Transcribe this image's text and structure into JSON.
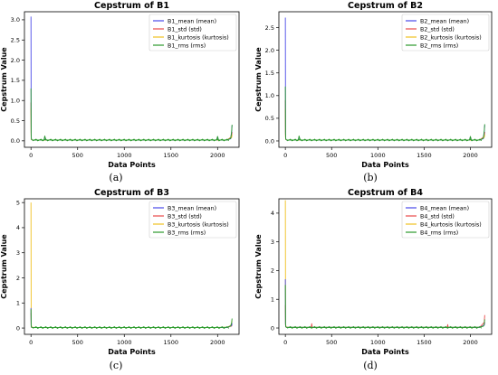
{
  "chart_data": [
    {
      "type": "line",
      "title": "Cepstrum of B1",
      "xlabel": "Data Points",
      "ylabel": "Cepstrum Value",
      "xlim": [
        -70,
        2230
      ],
      "ylim": [
        -0.16,
        3.2
      ],
      "xticks": [
        0,
        500,
        1000,
        1500,
        2000
      ],
      "yticks": [
        0.0,
        0.5,
        1.0,
        1.5,
        2.0,
        2.5,
        3.0
      ],
      "ytick_decimals": 1,
      "legend_position": "top-right",
      "caption": "(a)",
      "series": [
        {
          "name": "B1_mean (mean)",
          "color": "#4a4ae8",
          "x": [
            0,
            2,
            4,
            8,
            15,
            40,
            140,
            148,
            160,
            400,
            800,
            1200,
            1600,
            1990,
            2000,
            2010,
            2100,
            2140,
            2150,
            2155
          ],
          "y": [
            3.08,
            0.2,
            0.05,
            0.03,
            0.02,
            0.02,
            0.02,
            0.1,
            0.02,
            0.02,
            0.02,
            0.02,
            0.02,
            0.02,
            0.1,
            0.02,
            0.02,
            0.05,
            0.2,
            0.38
          ]
        },
        {
          "name": "B1_std (std)",
          "color": "#e84a4a",
          "x": [
            0,
            2,
            4,
            15,
            500,
            1000,
            1500,
            2100,
            2150,
            2155
          ],
          "y": [
            0.95,
            0.1,
            0.04,
            0.02,
            0.02,
            0.02,
            0.02,
            0.02,
            0.1,
            0.22
          ]
        },
        {
          "name": "B1_kurtosis (kurtosis)",
          "color": "#f0c020",
          "x": [
            0,
            2,
            4,
            15,
            500,
            1000,
            1500,
            2100,
            2150,
            2155
          ],
          "y": [
            0.8,
            0.08,
            0.03,
            0.02,
            0.02,
            0.02,
            0.02,
            0.02,
            0.08,
            0.15
          ]
        },
        {
          "name": "B1_rms (rms)",
          "color": "#2a9a2a",
          "x": [
            0,
            2,
            4,
            8,
            15,
            40,
            140,
            148,
            160,
            400,
            800,
            1200,
            1600,
            1990,
            2000,
            2010,
            2100,
            2140,
            2150,
            2155
          ],
          "y": [
            1.3,
            0.15,
            0.05,
            0.03,
            0.02,
            0.02,
            0.02,
            0.12,
            0.02,
            0.02,
            0.02,
            0.02,
            0.02,
            0.02,
            0.11,
            0.02,
            0.02,
            0.06,
            0.22,
            0.4
          ]
        }
      ]
    },
    {
      "type": "line",
      "title": "Cepstrum of B2",
      "xlabel": "Data Points",
      "ylabel": "Cepstrum Value",
      "xlim": [
        -70,
        2230
      ],
      "ylim": [
        -0.14,
        2.85
      ],
      "xticks": [
        0,
        500,
        1000,
        1500,
        2000
      ],
      "yticks": [
        0.0,
        0.5,
        1.0,
        1.5,
        2.0,
        2.5
      ],
      "ytick_decimals": 1,
      "legend_position": "top-right",
      "caption": "(b)",
      "series": [
        {
          "name": "B2_mean (mean)",
          "color": "#4a4ae8",
          "x": [
            0,
            2,
            4,
            8,
            15,
            40,
            140,
            148,
            160,
            400,
            800,
            1200,
            1600,
            1990,
            2000,
            2010,
            2100,
            2140,
            2150,
            2155
          ],
          "y": [
            2.72,
            0.2,
            0.05,
            0.03,
            0.02,
            0.02,
            0.02,
            0.09,
            0.02,
            0.02,
            0.02,
            0.02,
            0.02,
            0.02,
            0.09,
            0.02,
            0.02,
            0.05,
            0.2,
            0.35
          ]
        },
        {
          "name": "B2_std (std)",
          "color": "#e84a4a",
          "x": [
            0,
            2,
            4,
            15,
            500,
            1000,
            1500,
            2100,
            2150,
            2155
          ],
          "y": [
            0.9,
            0.1,
            0.04,
            0.02,
            0.02,
            0.02,
            0.02,
            0.02,
            0.1,
            0.2
          ]
        },
        {
          "name": "B2_kurtosis (kurtosis)",
          "color": "#f0c020",
          "x": [
            0,
            2,
            4,
            15,
            500,
            1000,
            1500,
            2100,
            2150,
            2155
          ],
          "y": [
            0.7,
            0.08,
            0.03,
            0.02,
            0.02,
            0.02,
            0.02,
            0.02,
            0.08,
            0.14
          ]
        },
        {
          "name": "B2_rms (rms)",
          "color": "#2a9a2a",
          "x": [
            0,
            2,
            4,
            8,
            15,
            40,
            140,
            148,
            160,
            400,
            800,
            1200,
            1600,
            1990,
            2000,
            2010,
            2100,
            2140,
            2150,
            2155
          ],
          "y": [
            1.2,
            0.15,
            0.05,
            0.03,
            0.02,
            0.02,
            0.02,
            0.11,
            0.02,
            0.02,
            0.02,
            0.02,
            0.02,
            0.02,
            0.1,
            0.02,
            0.02,
            0.06,
            0.22,
            0.37
          ]
        }
      ]
    },
    {
      "type": "line",
      "title": "Cepstrum of B3",
      "xlabel": "Data Points",
      "ylabel": "Cepstrum Value",
      "xlim": [
        -70,
        2230
      ],
      "ylim": [
        -0.25,
        5.15
      ],
      "xticks": [
        0,
        500,
        1000,
        1500,
        2000
      ],
      "yticks": [
        0,
        1,
        2,
        3,
        4,
        5
      ],
      "ytick_decimals": 0,
      "legend_position": "top-right",
      "caption": "(c)",
      "series": [
        {
          "name": "B3_mean (mean)",
          "color": "#4a4ae8",
          "x": [
            0,
            2,
            4,
            15,
            500,
            1000,
            1500,
            2100,
            2150,
            2155
          ],
          "y": [
            0.8,
            0.1,
            0.04,
            0.02,
            0.02,
            0.02,
            0.02,
            0.02,
            0.1,
            0.2
          ]
        },
        {
          "name": "B3_std (std)",
          "color": "#e84a4a",
          "x": [
            0,
            2,
            4,
            15,
            500,
            1000,
            1500,
            2100,
            2150,
            2155
          ],
          "y": [
            0.6,
            0.08,
            0.03,
            0.02,
            0.02,
            0.02,
            0.02,
            0.02,
            0.08,
            0.15
          ]
        },
        {
          "name": "B3_kurtosis (kurtosis)",
          "color": "#f0c020",
          "x": [
            0,
            2,
            4,
            8,
            15,
            40,
            500,
            1000,
            1500,
            2000,
            2100,
            2140,
            2150,
            2155
          ],
          "y": [
            5.0,
            0.5,
            0.1,
            0.05,
            0.03,
            0.02,
            0.02,
            0.02,
            0.02,
            0.02,
            0.03,
            0.1,
            0.2,
            0.3
          ]
        },
        {
          "name": "B3_rms (rms)",
          "color": "#2a9a2a",
          "x": [
            0,
            2,
            4,
            8,
            15,
            40,
            500,
            1000,
            1500,
            2000,
            2100,
            2140,
            2150,
            2155
          ],
          "y": [
            0.75,
            0.12,
            0.05,
            0.03,
            0.02,
            0.02,
            0.02,
            0.02,
            0.02,
            0.02,
            0.03,
            0.08,
            0.2,
            0.38
          ]
        }
      ]
    },
    {
      "type": "line",
      "title": "Cepstrum of B4",
      "xlabel": "Data Points",
      "ylabel": "Cepstrum Value",
      "xlim": [
        -70,
        2230
      ],
      "ylim": [
        -0.22,
        4.5
      ],
      "xticks": [
        0,
        500,
        1000,
        1500,
        2000
      ],
      "yticks": [
        0,
        1,
        2,
        3,
        4
      ],
      "ytick_decimals": 0,
      "legend_position": "top-right",
      "caption": "(d)",
      "series": [
        {
          "name": "B4_mean (mean)",
          "color": "#4a4ae8",
          "x": [
            0,
            2,
            4,
            15,
            500,
            1000,
            1500,
            2100,
            2150,
            2155
          ],
          "y": [
            1.7,
            0.15,
            0.05,
            0.02,
            0.02,
            0.02,
            0.02,
            0.02,
            0.1,
            0.2
          ]
        },
        {
          "name": "B4_std (std)",
          "color": "#e84a4a",
          "x": [
            0,
            2,
            4,
            15,
            280,
            285,
            290,
            800,
            1200,
            1500,
            1750,
            1755,
            1760,
            2100,
            2150,
            2155
          ],
          "y": [
            0.8,
            0.1,
            0.04,
            0.02,
            0.02,
            0.15,
            0.02,
            0.02,
            0.02,
            0.02,
            0.02,
            0.12,
            0.02,
            0.02,
            0.2,
            0.45
          ]
        },
        {
          "name": "B4_kurtosis (kurtosis)",
          "color": "#f0c020",
          "x": [
            0,
            2,
            4,
            8,
            15,
            40,
            500,
            1000,
            1500,
            2000,
            2100,
            2150,
            2155
          ],
          "y": [
            4.45,
            0.4,
            0.1,
            0.05,
            0.03,
            0.02,
            0.02,
            0.02,
            0.02,
            0.02,
            0.02,
            0.1,
            0.2
          ]
        },
        {
          "name": "B4_rms (rms)",
          "color": "#2a9a2a",
          "x": [
            0,
            2,
            4,
            8,
            15,
            40,
            500,
            1000,
            1500,
            2000,
            2100,
            2140,
            2150,
            2155
          ],
          "y": [
            1.5,
            0.15,
            0.05,
            0.03,
            0.02,
            0.02,
            0.02,
            0.02,
            0.02,
            0.02,
            0.03,
            0.06,
            0.15,
            0.3
          ]
        }
      ]
    }
  ]
}
